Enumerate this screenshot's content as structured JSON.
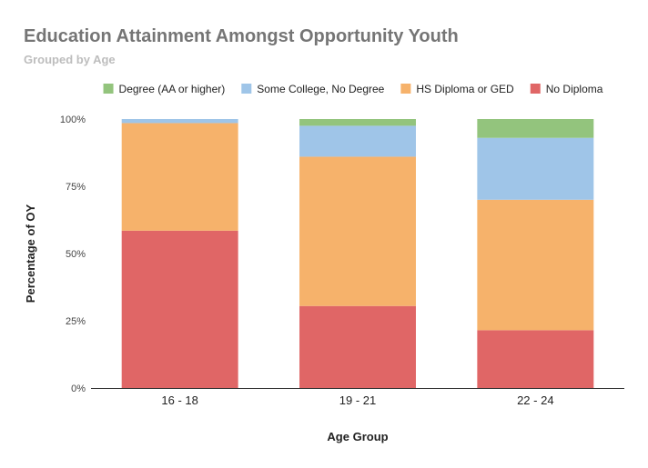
{
  "chart_data": {
    "type": "bar",
    "stacked": true,
    "title": "Education Attainment Amongst Opportunity Youth",
    "subtitle": "Grouped by Age",
    "xlabel": "Age Group",
    "ylabel": "Percentage of OY",
    "categories": [
      "16 - 18",
      "19 - 21",
      "22 - 24"
    ],
    "ylim": [
      0,
      100
    ],
    "yticks": [
      0,
      25,
      50,
      75,
      100
    ],
    "ytick_labels": [
      "0%",
      "25%",
      "50%",
      "75%",
      "100%"
    ],
    "grid": false,
    "legend_position": "top",
    "series": [
      {
        "name": "No Diploma",
        "color": "#e06666",
        "values": [
          58.5,
          30.5,
          21.5
        ]
      },
      {
        "name": "HS Diploma or GED",
        "color": "#f6b26b",
        "values": [
          40.0,
          55.5,
          48.5
        ]
      },
      {
        "name": "Some College, No Degree",
        "color": "#9fc5e8",
        "values": [
          1.5,
          11.5,
          23.0
        ]
      },
      {
        "name": "Degree (AA or higher)",
        "color": "#93c47d",
        "values": [
          0,
          2.5,
          7.0
        ]
      }
    ],
    "legend_order": [
      "Degree (AA or higher)",
      "Some College, No Degree",
      "HS Diploma or GED",
      "No Diploma"
    ]
  }
}
